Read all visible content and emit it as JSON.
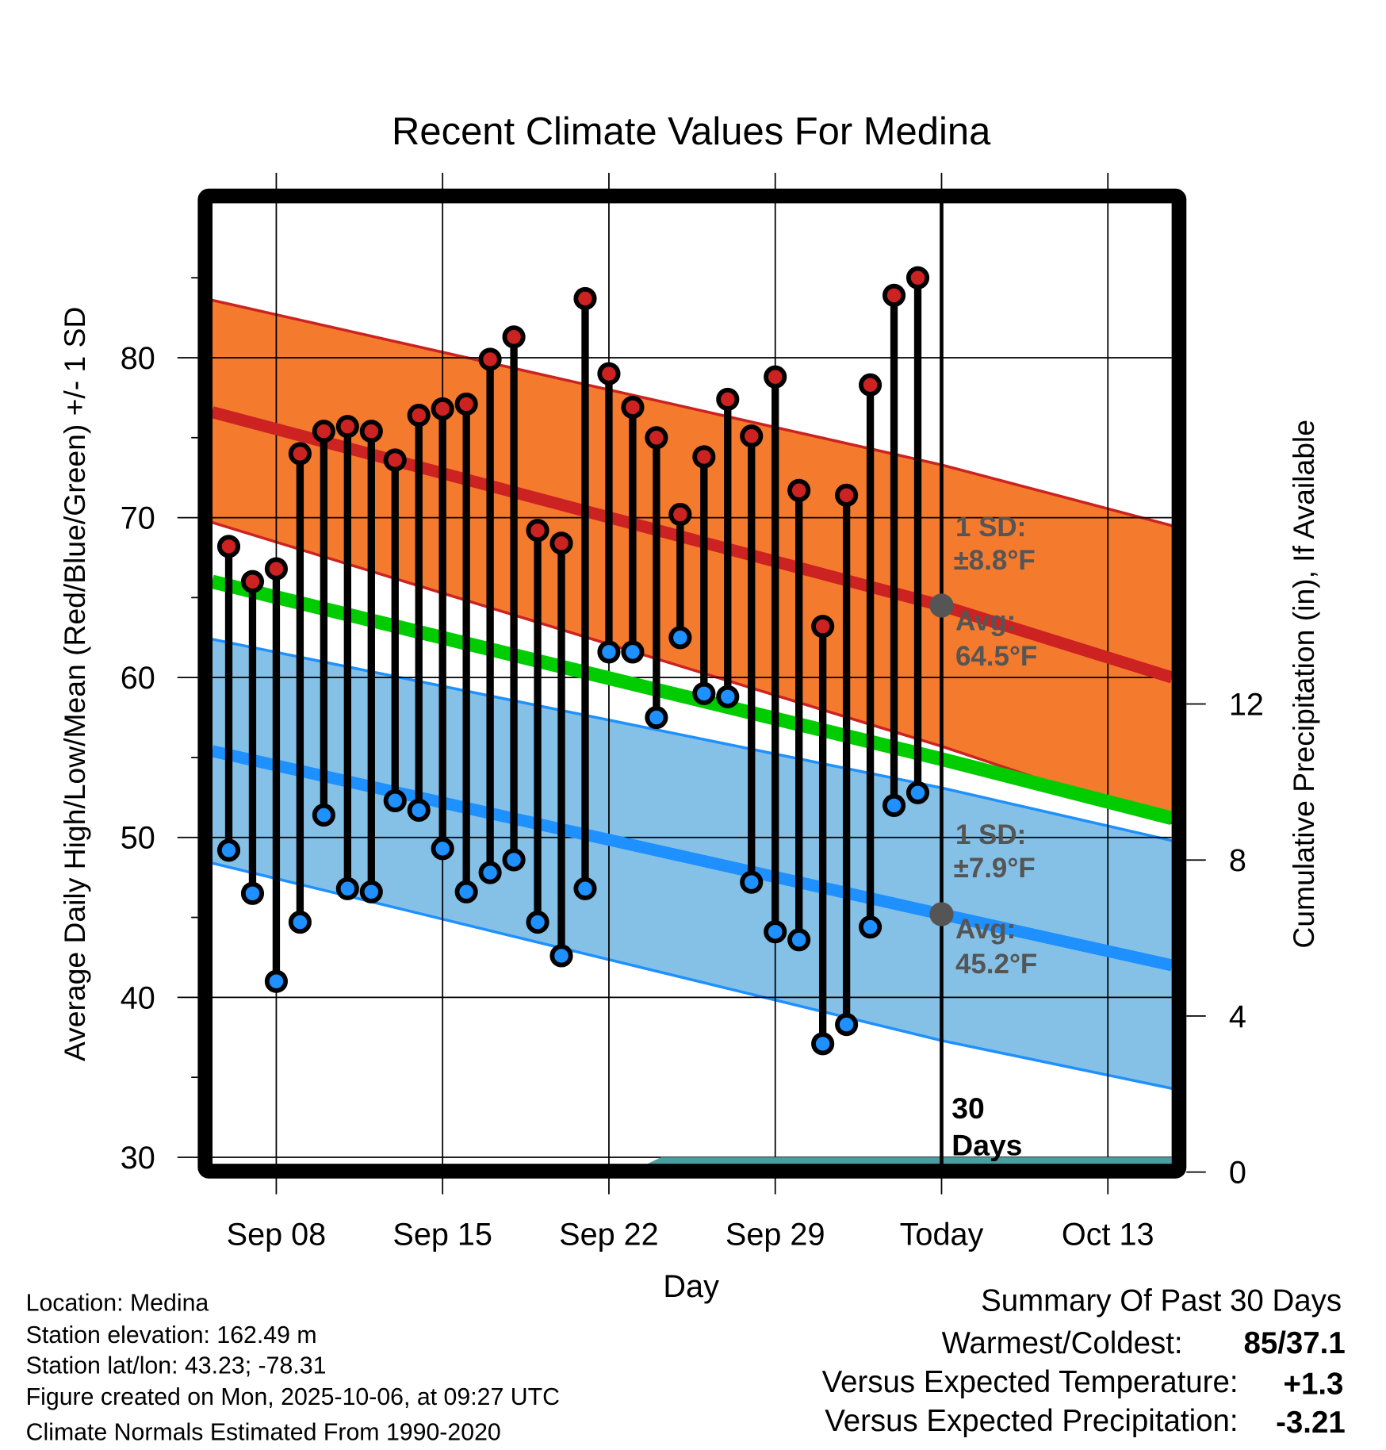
{
  "chart_data": {
    "type": "line",
    "title": "Recent Climate Values For Medina",
    "xlabel": "Day",
    "ylabel": "Average Daily High/Low/Mean (Red/Blue/Green) +/- 1 SD",
    "y2label": "Cumulative Precipitation (in), If Available",
    "ylim": [
      30,
      90
    ],
    "y2lim": [
      0,
      28
    ],
    "yticks": [
      "30",
      "40",
      "50",
      "60",
      "70",
      "80"
    ],
    "y2ticks": [
      "0",
      "4",
      "8",
      "12"
    ],
    "xticks": [
      "Sep 08",
      "Sep 15",
      "Sep 22",
      "Sep 29",
      "Today",
      "Oct 13"
    ],
    "xtick_day_offsets": [
      0,
      7,
      14,
      21,
      28,
      35
    ],
    "xlim_day_offsets": [
      -2.7,
      37.7
    ],
    "grid": true,
    "days": [
      "Sep 06",
      "Sep 07",
      "Sep 08",
      "Sep 09",
      "Sep 10",
      "Sep 11",
      "Sep 12",
      "Sep 13",
      "Sep 14",
      "Sep 15",
      "Sep 16",
      "Sep 17",
      "Sep 18",
      "Sep 19",
      "Sep 20",
      "Sep 21",
      "Sep 22",
      "Sep 23",
      "Sep 24",
      "Sep 25",
      "Sep 26",
      "Sep 27",
      "Sep 28",
      "Sep 29",
      "Sep 30",
      "Oct 01",
      "Oct 02",
      "Oct 03",
      "Oct 04",
      "Oct 05"
    ],
    "day_offsets": [
      -2,
      -1,
      0,
      1,
      2,
      3,
      4,
      5,
      6,
      7,
      8,
      9,
      10,
      11,
      12,
      13,
      14,
      15,
      16,
      17,
      18,
      19,
      20,
      21,
      22,
      23,
      24,
      25,
      26,
      27
    ],
    "series": [
      {
        "name": "Daily High",
        "color": "#cc2222",
        "values": [
          68.2,
          66.0,
          66.8,
          74.0,
          75.4,
          75.7,
          75.4,
          73.6,
          76.4,
          76.8,
          77.1,
          79.9,
          81.3,
          69.2,
          68.4,
          83.7,
          79.0,
          76.9,
          75.0,
          70.2,
          73.8,
          77.4,
          75.1,
          78.8,
          71.7,
          63.2,
          71.4,
          78.3,
          83.9,
          85.0
        ]
      },
      {
        "name": "Daily Low",
        "color": "#1e90ff",
        "values": [
          49.2,
          46.5,
          41.0,
          44.7,
          51.4,
          46.8,
          46.6,
          52.3,
          51.7,
          49.3,
          46.6,
          47.8,
          48.6,
          44.7,
          42.6,
          46.8,
          61.6,
          61.6,
          57.5,
          62.5,
          59.0,
          58.8,
          47.2,
          44.1,
          43.6,
          37.1,
          38.3,
          44.4,
          52.0,
          52.8
        ]
      }
    ],
    "normals": {
      "x_day_offsets": [
        -2.7,
        28,
        37.7
      ],
      "high_avg": [
        76.6,
        64.5,
        60.0
      ],
      "high_sd": 8.8,
      "high_upper": [
        83.6,
        73.3,
        69.5
      ],
      "high_lower": [
        69.7,
        55.7,
        50.9
      ],
      "low_avg": [
        55.4,
        45.2,
        42.0
      ],
      "low_upper": [
        62.4,
        53.1,
        49.8
      ],
      "low_lower": [
        48.4,
        37.3,
        34.3
      ],
      "low_sd": 7.9,
      "mean": [
        66.0,
        54.9,
        51.2
      ]
    },
    "precip": {
      "x_day_offsets": [
        -2.7,
        14.9,
        16.2,
        37.7
      ],
      "values": [
        0,
        0,
        0.38,
        0.38
      ],
      "color": "#4a9ea1"
    },
    "annotations": {
      "high_sd_label": "1 SD:",
      "high_sd_value": "±8.8°F",
      "high_avg_label": "Avg:",
      "high_avg_value": "64.5°F",
      "low_sd_label": "1 SD:",
      "low_sd_value": "±7.9°F",
      "low_avg_label": "Avg:",
      "low_avg_value": "45.2°F",
      "window_num": "30",
      "window_unit": "Days"
    },
    "colors": {
      "high_band": "#f47a2e",
      "high_line": "#cc2222",
      "low_band": "#85c1e6",
      "low_line": "#1e90ff",
      "mean_line": "#00cc00",
      "marker": "#555555"
    }
  },
  "info": [
    "Location: Medina",
    "Station elevation: 162.49 m",
    "Station lat/lon: 43.23; -78.31",
    "Figure created on Mon, 2025-10-06, at 09:27 UTC",
    "Climate Normals Estimated From 1990-2020"
  ],
  "summary": {
    "title": "Summary Of Past 30 Days",
    "warm_cold_label": "Warmest/Coldest:",
    "warm_cold_value": "85/37.1",
    "temp_label": "Versus Expected Temperature:",
    "temp_value": "+1.3",
    "temp_color": "#cc2222",
    "precip_label": "Versus Expected Precipitation:",
    "precip_value": "-3.21",
    "precip_color": "#a0522d"
  }
}
